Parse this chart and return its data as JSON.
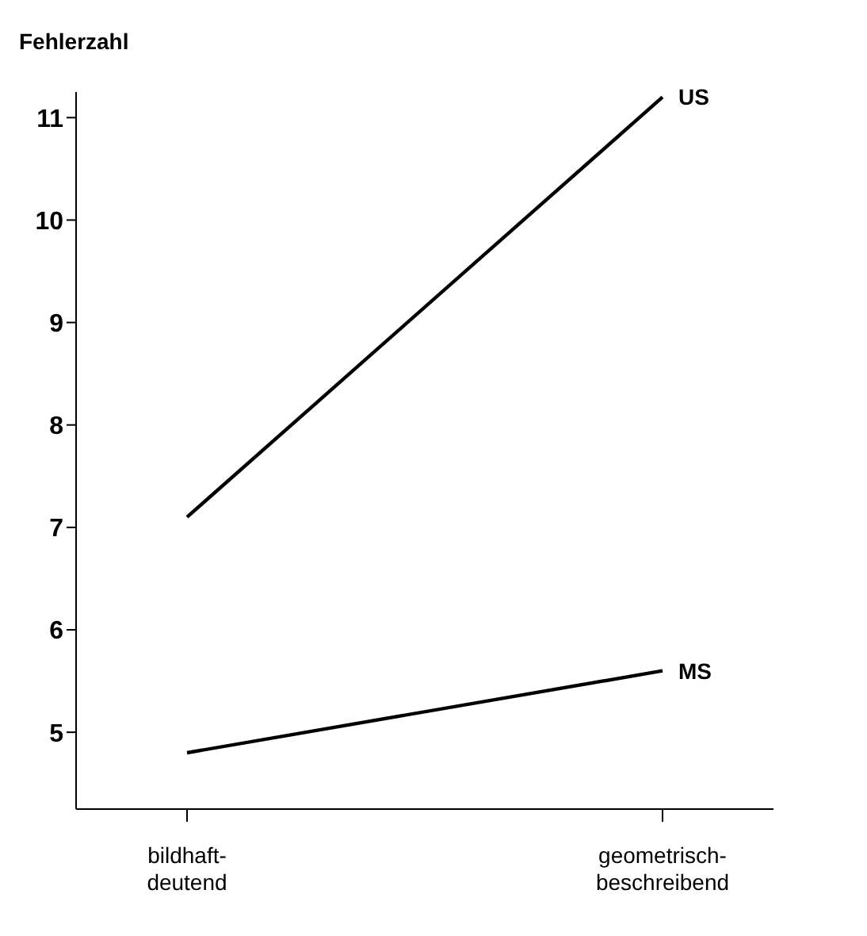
{
  "chart_data": {
    "type": "line",
    "ylabel": "Fehlerzahl",
    "categories": [
      "bildhaft-deutend",
      "geometrisch-beschreibend"
    ],
    "series": [
      {
        "name": "US",
        "color": "#000000",
        "values": [
          7.1,
          11.2
        ]
      },
      {
        "name": "MS",
        "color": "#000000",
        "values": [
          4.8,
          5.6
        ]
      }
    ],
    "ylim": [
      4.25,
      11.25
    ],
    "yticks": [
      5,
      6,
      7,
      8,
      9,
      10,
      11
    ],
    "grid": false,
    "legend": false,
    "marker": "none",
    "line_style": "solid"
  }
}
